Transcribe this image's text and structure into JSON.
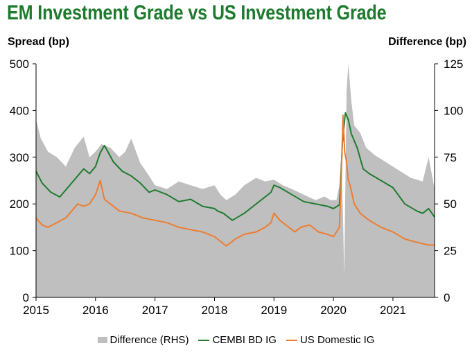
{
  "chart_data": {
    "type": "line",
    "title": "EM Investment Grade vs US Investment Grade",
    "ylabel": "Spread (bp)",
    "y2label": "Difference (bp)",
    "xlim": [
      2015,
      2021.7
    ],
    "ylim": [
      0,
      500
    ],
    "y2lim": [
      0,
      125
    ],
    "x_ticks": [
      2015,
      2016,
      2017,
      2018,
      2019,
      2020,
      2021
    ],
    "y_ticks": [
      0,
      100,
      200,
      300,
      400,
      500
    ],
    "y2_ticks": [
      0,
      25,
      50,
      75,
      100,
      125
    ],
    "series": [
      {
        "name": "Difference (RHS)",
        "style": "area",
        "axis": "right",
        "color": "#bfbfbf",
        "x": [
          2015.0,
          2015.08,
          2015.2,
          2015.35,
          2015.5,
          2015.65,
          2015.8,
          2015.9,
          2016.0,
          2016.1,
          2016.25,
          2016.4,
          2016.5,
          2016.6,
          2016.75,
          2016.9,
          2017.0,
          2017.2,
          2017.4,
          2017.6,
          2017.8,
          2018.0,
          2018.1,
          2018.2,
          2018.35,
          2018.5,
          2018.7,
          2018.85,
          2019.0,
          2019.15,
          2019.3,
          2019.5,
          2019.7,
          2019.85,
          2019.95,
          2020.05,
          2020.1,
          2020.13,
          2020.16,
          2020.18,
          2020.2,
          2020.22,
          2020.25,
          2020.3,
          2020.35,
          2020.45,
          2020.55,
          2020.7,
          2020.9,
          2021.1,
          2021.3,
          2021.5,
          2021.6,
          2021.7
        ],
        "values": [
          95,
          85,
          78,
          75,
          70,
          80,
          86,
          75,
          78,
          82,
          80,
          75,
          78,
          85,
          72,
          65,
          60,
          58,
          62,
          60,
          58,
          60,
          55,
          52,
          55,
          60,
          64,
          62,
          63,
          60,
          58,
          55,
          52,
          54,
          52,
          52,
          60,
          75,
          45,
          12,
          60,
          110,
          125,
          105,
          92,
          88,
          80,
          76,
          72,
          68,
          64,
          62,
          75,
          58
        ]
      },
      {
        "name": "CEMBI BD IG",
        "style": "line",
        "axis": "left",
        "color": "#1e7b2e",
        "x": [
          2015.0,
          2015.1,
          2015.25,
          2015.4,
          2015.5,
          2015.6,
          2015.7,
          2015.8,
          2015.9,
          2016.0,
          2016.08,
          2016.15,
          2016.3,
          2016.45,
          2016.6,
          2016.75,
          2016.9,
          2017.0,
          2017.2,
          2017.4,
          2017.6,
          2017.8,
          2018.0,
          2018.05,
          2018.15,
          2018.3,
          2018.5,
          2018.65,
          2018.8,
          2018.95,
          2019.0,
          2019.1,
          2019.3,
          2019.5,
          2019.7,
          2019.9,
          2020.0,
          2020.1,
          2020.12,
          2020.15,
          2020.2,
          2020.25,
          2020.3,
          2020.4,
          2020.5,
          2020.6,
          2020.8,
          2021.0,
          2021.2,
          2021.4,
          2021.5,
          2021.6,
          2021.7
        ],
        "values": [
          270,
          245,
          225,
          215,
          230,
          245,
          260,
          275,
          265,
          280,
          310,
          325,
          290,
          270,
          260,
          245,
          225,
          230,
          220,
          205,
          210,
          195,
          190,
          185,
          180,
          165,
          180,
          195,
          210,
          225,
          240,
          235,
          220,
          205,
          200,
          195,
          190,
          198,
          240,
          330,
          395,
          380,
          350,
          320,
          275,
          265,
          250,
          235,
          200,
          185,
          180,
          190,
          172
        ]
      },
      {
        "name": "US Domestic IG",
        "style": "line",
        "axis": "left",
        "color": "#ed7d31",
        "x": [
          2015.0,
          2015.1,
          2015.2,
          2015.35,
          2015.5,
          2015.6,
          2015.7,
          2015.8,
          2015.9,
          2016.0,
          2016.08,
          2016.15,
          2016.25,
          2016.4,
          2016.6,
          2016.8,
          2017.0,
          2017.2,
          2017.4,
          2017.6,
          2017.8,
          2018.0,
          2018.1,
          2018.2,
          2018.35,
          2018.5,
          2018.7,
          2018.85,
          2018.95,
          2019.0,
          2019.1,
          2019.25,
          2019.35,
          2019.45,
          2019.6,
          2019.75,
          2019.9,
          2020.0,
          2020.1,
          2020.13,
          2020.16,
          2020.19,
          2020.22,
          2020.25,
          2020.28,
          2020.35,
          2020.45,
          2020.6,
          2020.8,
          2021.0,
          2021.2,
          2021.4,
          2021.6,
          2021.7
        ],
        "values": [
          170,
          155,
          150,
          160,
          170,
          185,
          200,
          195,
          200,
          220,
          250,
          210,
          200,
          185,
          180,
          170,
          165,
          160,
          150,
          145,
          140,
          130,
          120,
          110,
          125,
          135,
          140,
          150,
          160,
          180,
          165,
          150,
          140,
          150,
          155,
          140,
          135,
          130,
          150,
          250,
          390,
          310,
          290,
          250,
          240,
          200,
          180,
          165,
          150,
          140,
          125,
          118,
          112,
          112
        ]
      }
    ]
  }
}
